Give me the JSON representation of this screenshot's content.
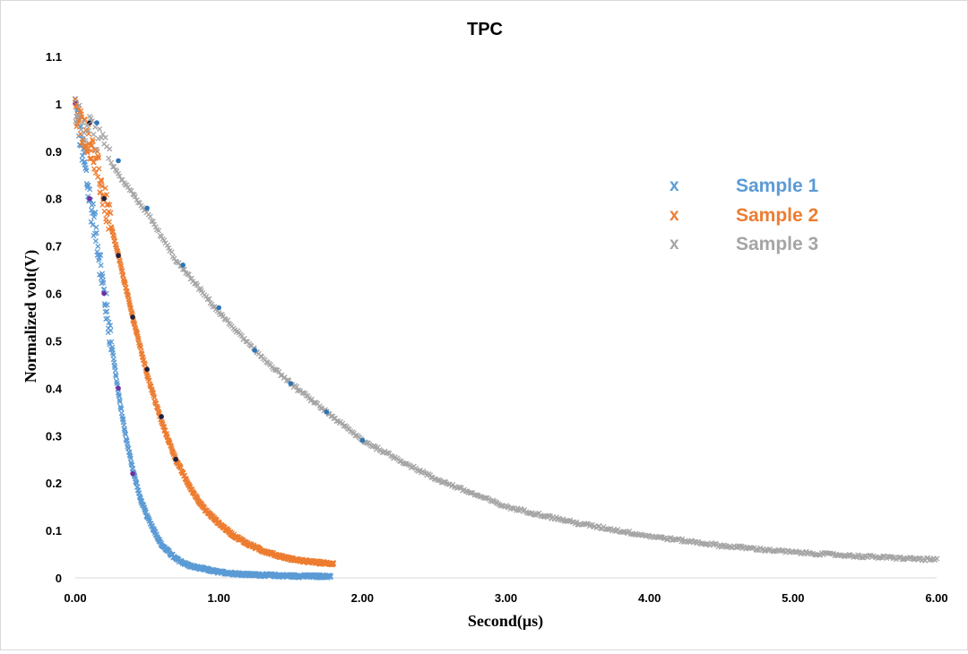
{
  "chart_data": {
    "type": "scatter",
    "title": "TPC",
    "xlabel": "Second(μs)",
    "ylabel": "Normalized volt(V)",
    "xlim": [
      0,
      6
    ],
    "ylim": [
      0,
      1.1
    ],
    "x_ticks": [
      "0.00",
      "1.00",
      "2.00",
      "3.00",
      "4.00",
      "5.00",
      "6.00"
    ],
    "y_ticks": [
      "0",
      "0.1",
      "0.2",
      "0.3",
      "0.4",
      "0.5",
      "0.6",
      "0.7",
      "0.8",
      "0.9",
      "1",
      "1.1"
    ],
    "grid": false,
    "legend_position": "upper-right",
    "series": [
      {
        "name": "Sample 1",
        "marker": "x",
        "color": "#5b9bd5",
        "fit_color": "#7030a0",
        "points": [
          [
            0.0,
            1.0
          ],
          [
            0.05,
            0.9
          ],
          [
            0.1,
            0.8
          ],
          [
            0.15,
            0.72
          ],
          [
            0.2,
            0.6
          ],
          [
            0.25,
            0.5
          ],
          [
            0.3,
            0.39
          ],
          [
            0.35,
            0.3
          ],
          [
            0.4,
            0.23
          ],
          [
            0.45,
            0.17
          ],
          [
            0.5,
            0.13
          ],
          [
            0.6,
            0.07
          ],
          [
            0.7,
            0.04
          ],
          [
            0.8,
            0.025
          ],
          [
            1.0,
            0.012
          ],
          [
            1.2,
            0.007
          ],
          [
            1.5,
            0.004
          ],
          [
            1.78,
            0.003
          ]
        ],
        "fit": [
          [
            0.0,
            1.0
          ],
          [
            0.1,
            0.8
          ],
          [
            0.2,
            0.6
          ],
          [
            0.3,
            0.4
          ],
          [
            0.4,
            0.22
          ]
        ]
      },
      {
        "name": "Sample 2",
        "marker": "x",
        "color": "#ed7d31",
        "fit_color": "#1f1f3f",
        "points": [
          [
            0.0,
            0.98
          ],
          [
            0.05,
            0.95
          ],
          [
            0.1,
            0.92
          ],
          [
            0.15,
            0.87
          ],
          [
            0.2,
            0.8
          ],
          [
            0.3,
            0.68
          ],
          [
            0.4,
            0.55
          ],
          [
            0.5,
            0.43
          ],
          [
            0.6,
            0.33
          ],
          [
            0.7,
            0.25
          ],
          [
            0.8,
            0.19
          ],
          [
            0.9,
            0.145
          ],
          [
            1.0,
            0.115
          ],
          [
            1.1,
            0.09
          ],
          [
            1.2,
            0.072
          ],
          [
            1.3,
            0.058
          ],
          [
            1.4,
            0.048
          ],
          [
            1.5,
            0.04
          ],
          [
            1.6,
            0.035
          ],
          [
            1.7,
            0.032
          ],
          [
            1.8,
            0.03
          ]
        ],
        "fit": [
          [
            0.1,
            0.96
          ],
          [
            0.2,
            0.8
          ],
          [
            0.3,
            0.68
          ],
          [
            0.4,
            0.55
          ],
          [
            0.5,
            0.44
          ],
          [
            0.6,
            0.34
          ],
          [
            0.7,
            0.25
          ]
        ]
      },
      {
        "name": "Sample 3",
        "marker": "x",
        "color": "#a5a5a5",
        "fit_color": "#2e75b6",
        "points": [
          [
            0.0,
            0.98
          ],
          [
            0.1,
            0.94
          ],
          [
            0.2,
            0.9
          ],
          [
            0.3,
            0.85
          ],
          [
            0.5,
            0.77
          ],
          [
            0.7,
            0.67
          ],
          [
            1.0,
            0.56
          ],
          [
            1.25,
            0.48
          ],
          [
            1.5,
            0.41
          ],
          [
            1.75,
            0.35
          ],
          [
            2.0,
            0.29
          ],
          [
            2.5,
            0.21
          ],
          [
            3.0,
            0.15
          ],
          [
            3.5,
            0.115
          ],
          [
            4.0,
            0.088
          ],
          [
            4.5,
            0.068
          ],
          [
            5.0,
            0.054
          ],
          [
            5.5,
            0.045
          ],
          [
            6.0,
            0.038
          ]
        ],
        "fit": [
          [
            0.15,
            0.96
          ],
          [
            0.3,
            0.88
          ],
          [
            0.5,
            0.78
          ],
          [
            0.75,
            0.66
          ],
          [
            1.0,
            0.57
          ],
          [
            1.25,
            0.48
          ],
          [
            1.5,
            0.41
          ],
          [
            1.75,
            0.35
          ],
          [
            2.0,
            0.29
          ]
        ]
      }
    ]
  }
}
